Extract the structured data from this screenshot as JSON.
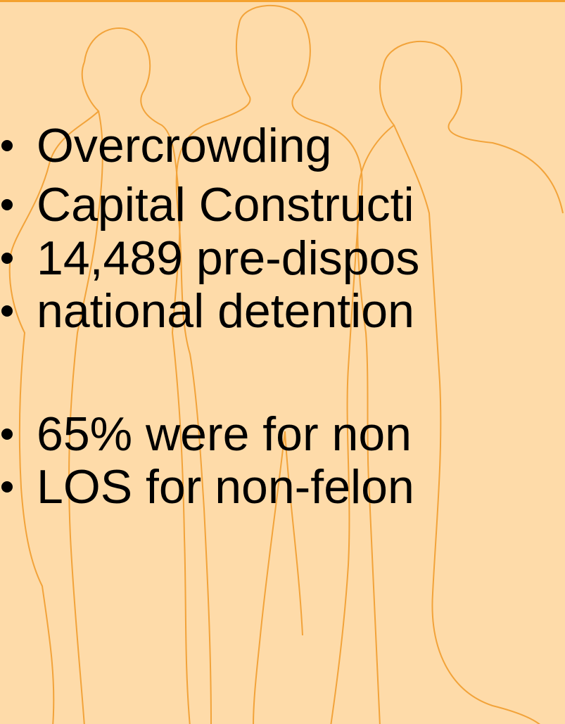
{
  "slide": {
    "bullets": [
      "Overcrowding",
      "Capital Constructi",
      "14,489 pre-dispos",
      "national detention",
      "65% were for non",
      "LOS for non-felon"
    ]
  }
}
